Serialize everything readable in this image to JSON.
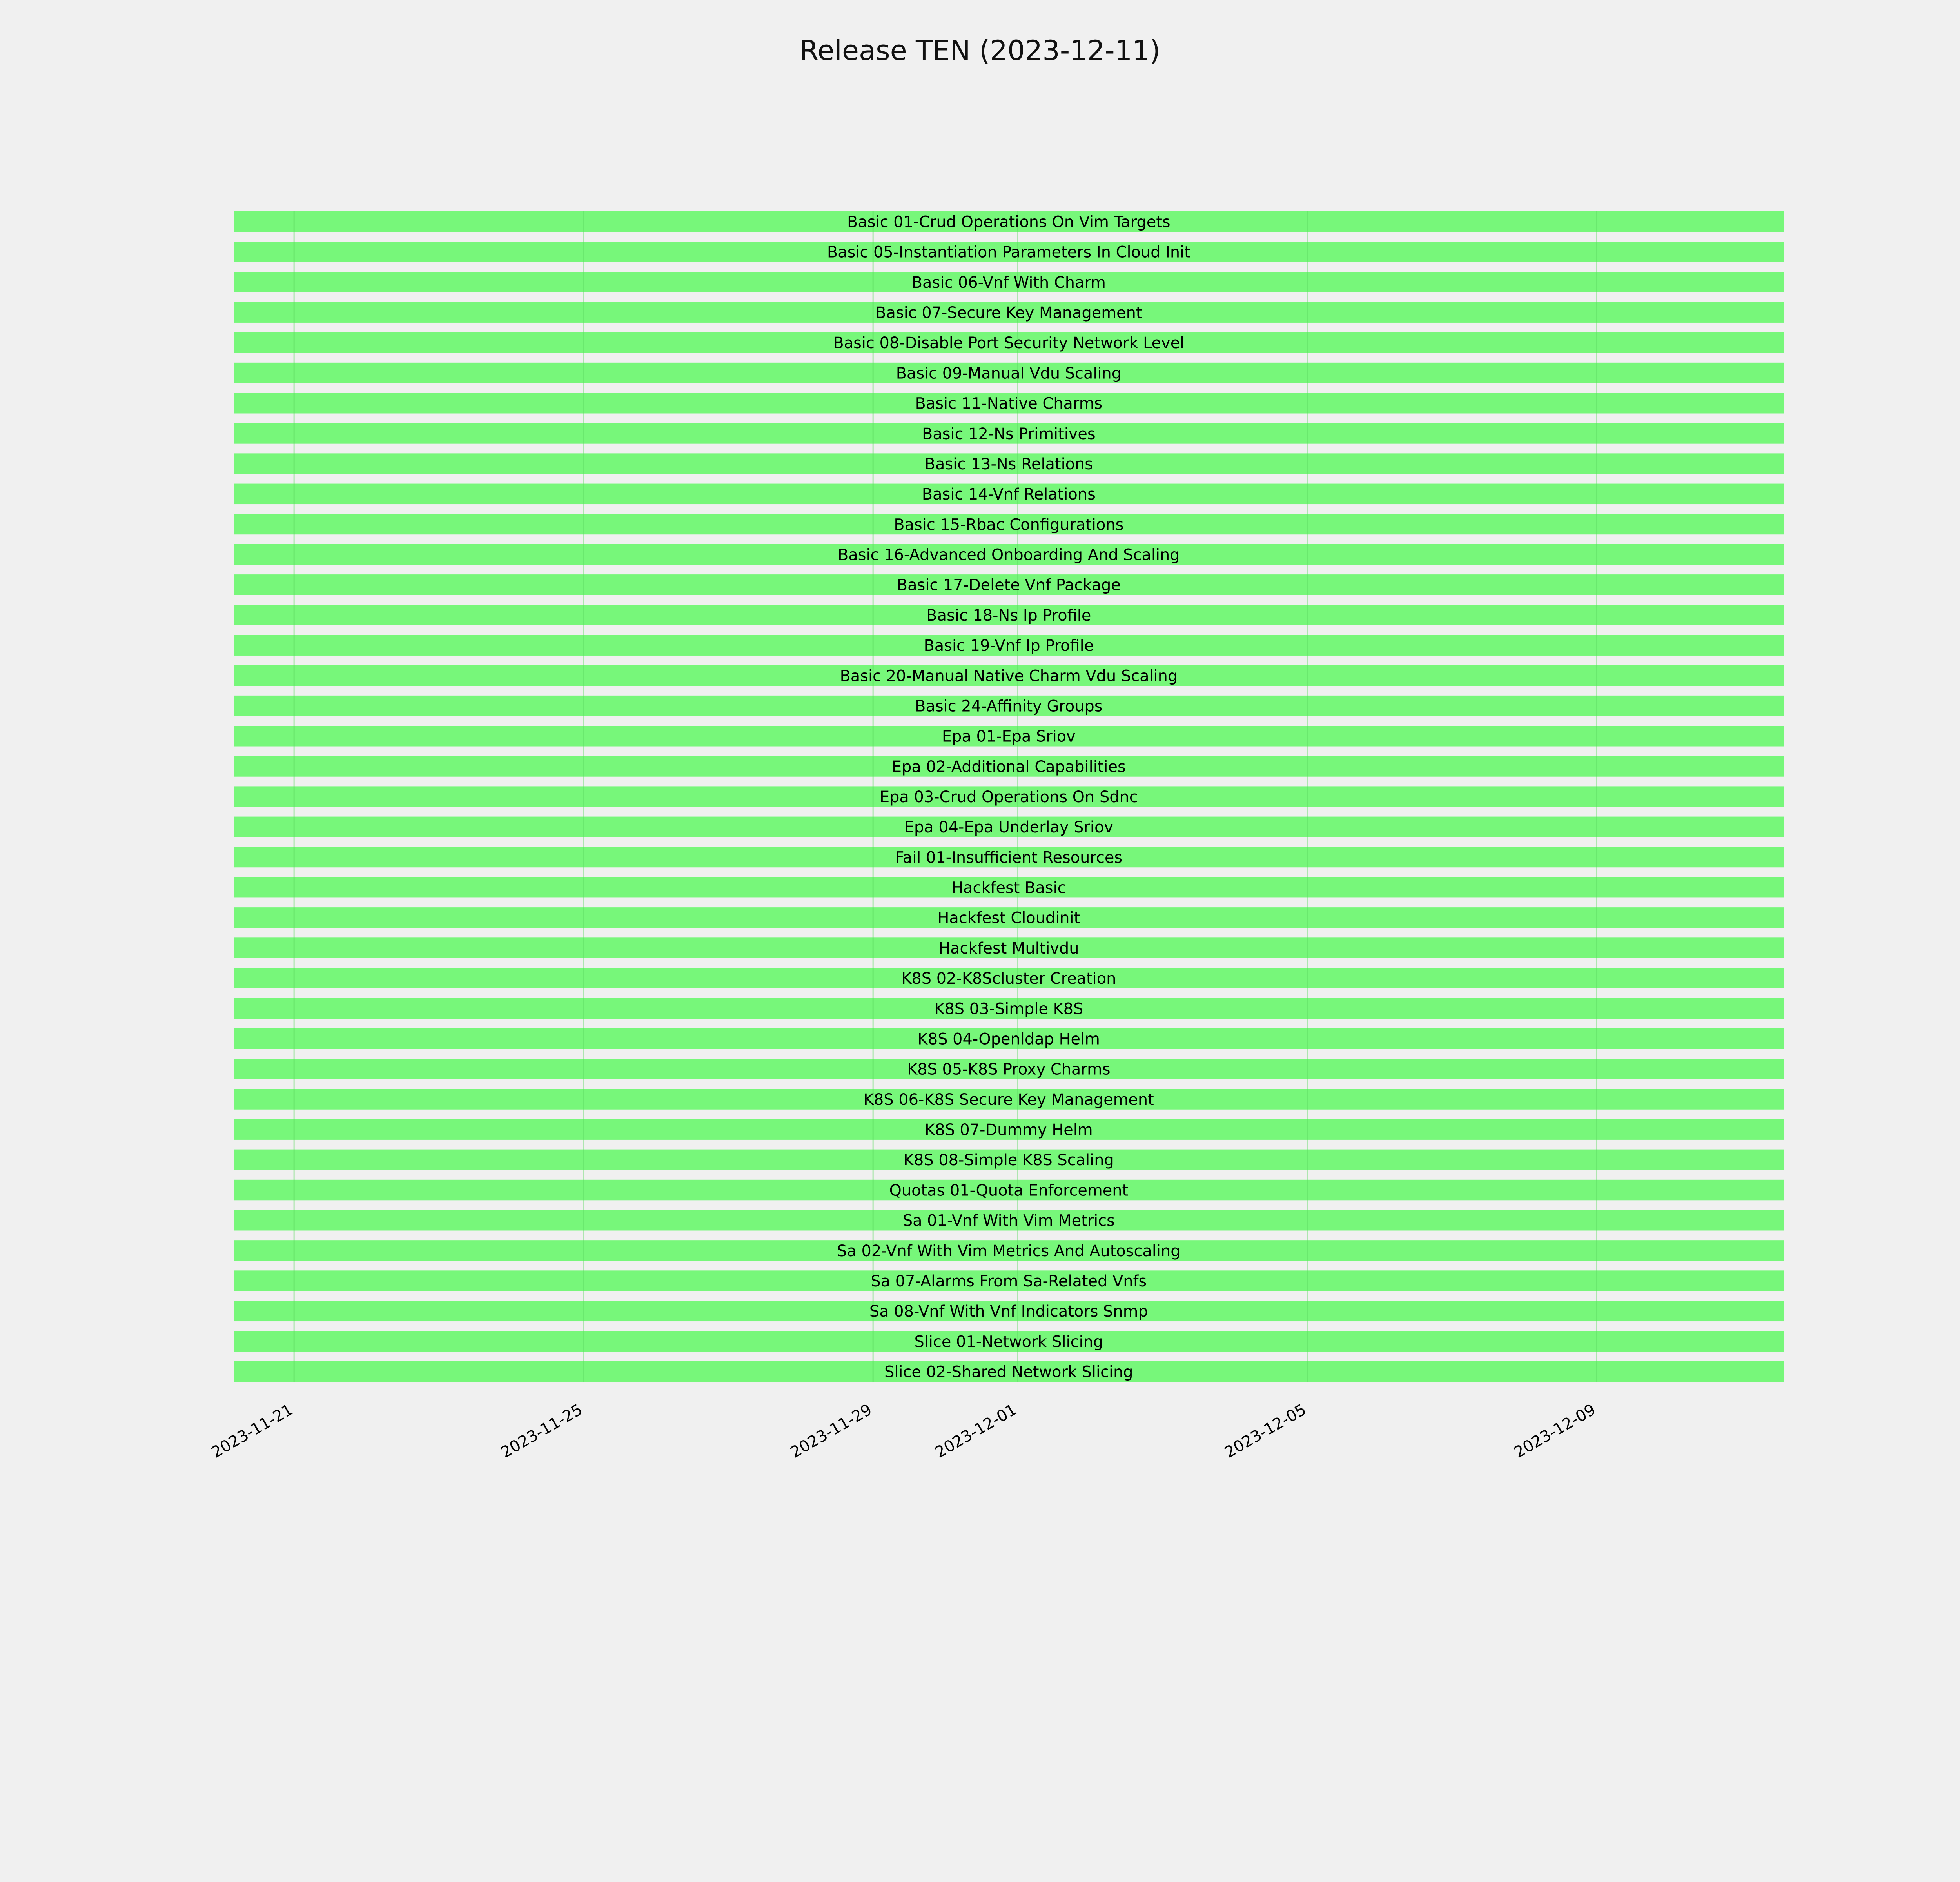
{
  "chart_data": {
    "type": "bar",
    "orientation": "horizontal-gantt",
    "title": "Release TEN (2023-12-11)",
    "xlabel": "",
    "ylabel": "",
    "x_ticks": [
      "2023-11-21",
      "2023-11-25",
      "2023-11-29",
      "2023-12-01",
      "2023-12-05",
      "2023-12-09"
    ],
    "xlim": [
      "2023-11-20T04:00",
      "2023-12-11T14:00"
    ],
    "grid": true,
    "bar_color": "#77f77a",
    "grid_color": "#5cd860",
    "background": "#f0f0f0",
    "bars": [
      {
        "label": "Basic 01-Crud Operations On Vim Targets",
        "start": "2023-11-20T04:00",
        "end": "2023-12-11T14:00"
      },
      {
        "label": "Basic 05-Instantiation Parameters In Cloud Init",
        "start": "2023-11-20T04:00",
        "end": "2023-12-11T14:00"
      },
      {
        "label": "Basic 06-Vnf With Charm",
        "start": "2023-11-20T04:00",
        "end": "2023-12-11T14:00"
      },
      {
        "label": "Basic 07-Secure Key Management",
        "start": "2023-11-20T04:00",
        "end": "2023-12-11T14:00"
      },
      {
        "label": "Basic 08-Disable Port Security Network Level",
        "start": "2023-11-20T04:00",
        "end": "2023-12-11T14:00"
      },
      {
        "label": "Basic 09-Manual Vdu Scaling",
        "start": "2023-11-20T04:00",
        "end": "2023-12-11T14:00"
      },
      {
        "label": "Basic 11-Native Charms",
        "start": "2023-11-20T04:00",
        "end": "2023-12-11T14:00"
      },
      {
        "label": "Basic 12-Ns Primitives",
        "start": "2023-11-20T04:00",
        "end": "2023-12-11T14:00"
      },
      {
        "label": "Basic 13-Ns Relations",
        "start": "2023-11-20T04:00",
        "end": "2023-12-11T14:00"
      },
      {
        "label": "Basic 14-Vnf Relations",
        "start": "2023-11-20T04:00",
        "end": "2023-12-11T14:00"
      },
      {
        "label": "Basic 15-Rbac Configurations",
        "start": "2023-11-20T04:00",
        "end": "2023-12-11T14:00"
      },
      {
        "label": "Basic 16-Advanced Onboarding And Scaling",
        "start": "2023-11-20T04:00",
        "end": "2023-12-11T14:00"
      },
      {
        "label": "Basic 17-Delete Vnf Package",
        "start": "2023-11-20T04:00",
        "end": "2023-12-11T14:00"
      },
      {
        "label": "Basic 18-Ns Ip Profile",
        "start": "2023-11-20T04:00",
        "end": "2023-12-11T14:00"
      },
      {
        "label": "Basic 19-Vnf Ip Profile",
        "start": "2023-11-20T04:00",
        "end": "2023-12-11T14:00"
      },
      {
        "label": "Basic 20-Manual Native Charm Vdu Scaling",
        "start": "2023-11-20T04:00",
        "end": "2023-12-11T14:00"
      },
      {
        "label": "Basic 24-Affinity Groups",
        "start": "2023-11-20T04:00",
        "end": "2023-12-11T14:00"
      },
      {
        "label": "Epa 01-Epa Sriov",
        "start": "2023-11-20T04:00",
        "end": "2023-12-11T14:00"
      },
      {
        "label": "Epa 02-Additional Capabilities",
        "start": "2023-11-20T04:00",
        "end": "2023-12-11T14:00"
      },
      {
        "label": "Epa 03-Crud Operations On Sdnc",
        "start": "2023-11-20T04:00",
        "end": "2023-12-11T14:00"
      },
      {
        "label": "Epa 04-Epa Underlay Sriov",
        "start": "2023-11-20T04:00",
        "end": "2023-12-11T14:00"
      },
      {
        "label": "Fail 01-Insufficient Resources",
        "start": "2023-11-20T04:00",
        "end": "2023-12-11T14:00"
      },
      {
        "label": "Hackfest Basic",
        "start": "2023-11-20T04:00",
        "end": "2023-12-11T14:00"
      },
      {
        "label": "Hackfest Cloudinit",
        "start": "2023-11-20T04:00",
        "end": "2023-12-11T14:00"
      },
      {
        "label": "Hackfest Multivdu",
        "start": "2023-11-20T04:00",
        "end": "2023-12-11T14:00"
      },
      {
        "label": "K8S 02-K8Scluster Creation",
        "start": "2023-11-20T04:00",
        "end": "2023-12-11T14:00"
      },
      {
        "label": "K8S 03-Simple K8S",
        "start": "2023-11-20T04:00",
        "end": "2023-12-11T14:00"
      },
      {
        "label": "K8S 04-Openldap Helm",
        "start": "2023-11-20T04:00",
        "end": "2023-12-11T14:00"
      },
      {
        "label": "K8S 05-K8S Proxy Charms",
        "start": "2023-11-20T04:00",
        "end": "2023-12-11T14:00"
      },
      {
        "label": "K8S 06-K8S Secure Key Management",
        "start": "2023-11-20T04:00",
        "end": "2023-12-11T14:00"
      },
      {
        "label": "K8S 07-Dummy Helm",
        "start": "2023-11-20T04:00",
        "end": "2023-12-11T14:00"
      },
      {
        "label": "K8S 08-Simple K8S Scaling",
        "start": "2023-11-20T04:00",
        "end": "2023-12-11T14:00"
      },
      {
        "label": "Quotas 01-Quota Enforcement",
        "start": "2023-11-20T04:00",
        "end": "2023-12-11T14:00"
      },
      {
        "label": "Sa 01-Vnf With Vim Metrics",
        "start": "2023-11-20T04:00",
        "end": "2023-12-11T14:00"
      },
      {
        "label": "Sa 02-Vnf With Vim Metrics And Autoscaling",
        "start": "2023-11-20T04:00",
        "end": "2023-12-11T14:00"
      },
      {
        "label": "Sa 07-Alarms From Sa-Related Vnfs",
        "start": "2023-11-20T04:00",
        "end": "2023-12-11T14:00"
      },
      {
        "label": "Sa 08-Vnf With Vnf Indicators Snmp",
        "start": "2023-11-20T04:00",
        "end": "2023-12-11T14:00"
      },
      {
        "label": "Slice 01-Network Slicing",
        "start": "2023-11-20T04:00",
        "end": "2023-12-11T14:00"
      },
      {
        "label": "Slice 02-Shared Network Slicing",
        "start": "2023-11-20T04:00",
        "end": "2023-12-11T14:00"
      }
    ]
  }
}
